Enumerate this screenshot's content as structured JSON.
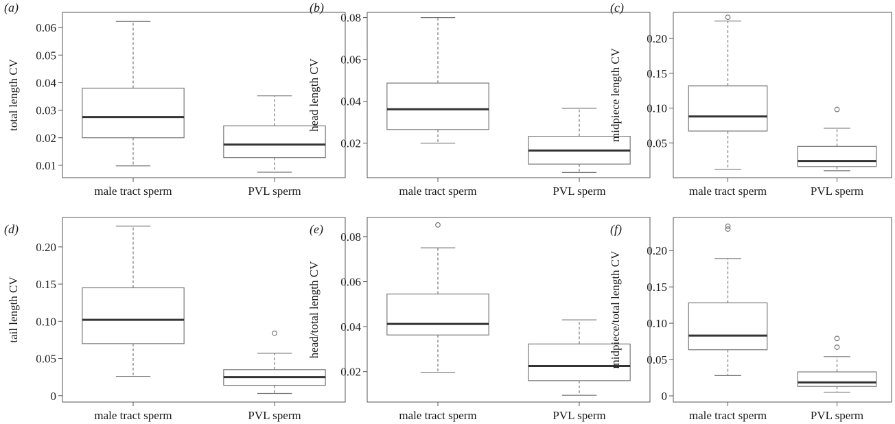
{
  "figure": {
    "categories": [
      "male tract sperm",
      "PVL sperm"
    ],
    "colors": {
      "frame": "#555555",
      "box": "#777777",
      "median": "#333333",
      "whisker": "#777777",
      "outlier": "#777777"
    }
  },
  "chart_data": [
    {
      "type": "box",
      "panel_label": "(a)",
      "ylabel": "total length CV",
      "categories": [
        "male tract sperm",
        "PVL sperm"
      ],
      "yticks": [
        0.01,
        0.02,
        0.03,
        0.04,
        0.05,
        0.06
      ],
      "ytick_labels": [
        "0.01",
        "0.02",
        "0.03",
        "0.04",
        "0.05",
        "0.06"
      ],
      "ylim": [
        0.0055,
        0.0655
      ],
      "boxes": [
        {
          "name": "male tract sperm",
          "min": 0.0098,
          "q1": 0.02,
          "median": 0.0275,
          "q3": 0.038,
          "max": 0.0622,
          "outliers": []
        },
        {
          "name": "PVL sperm",
          "min": 0.0075,
          "q1": 0.0128,
          "median": 0.0175,
          "q3": 0.0243,
          "max": 0.0352,
          "outliers": []
        }
      ]
    },
    {
      "type": "box",
      "panel_label": "(b)",
      "ylabel": "head length CV",
      "categories": [
        "male tract sperm",
        "PVL sperm"
      ],
      "yticks": [
        0.02,
        0.04,
        0.06,
        0.08
      ],
      "ytick_labels": [
        "0.02",
        "0.04",
        "0.06",
        "0.08"
      ],
      "ylim": [
        0.0035,
        0.0825
      ],
      "boxes": [
        {
          "name": "male tract sperm",
          "min": 0.02,
          "q1": 0.0265,
          "median": 0.0362,
          "q3": 0.0487,
          "max": 0.08,
          "outliers": []
        },
        {
          "name": "PVL sperm",
          "min": 0.006,
          "q1": 0.01,
          "median": 0.0165,
          "q3": 0.0233,
          "max": 0.0367,
          "outliers": []
        }
      ]
    },
    {
      "type": "box",
      "panel_label": "(c)",
      "ylabel": "midpiece length CV",
      "categories": [
        "male tract sperm",
        "PVL sperm"
      ],
      "yticks": [
        0.05,
        0.1,
        0.15,
        0.2
      ],
      "ytick_labels": [
        "0.05",
        "0.10",
        "0.15",
        "0.20"
      ],
      "ylim": [
        0.0,
        0.2375
      ],
      "boxes": [
        {
          "name": "male tract sperm",
          "min": 0.012,
          "q1": 0.067,
          "median": 0.088,
          "q3": 0.132,
          "max": 0.225,
          "outliers": [
            0.2305
          ]
        },
        {
          "name": "PVL sperm",
          "min": 0.01,
          "q1": 0.016,
          "median": 0.024,
          "q3": 0.045,
          "max": 0.071,
          "outliers": [
            0.098
          ]
        }
      ]
    },
    {
      "type": "box",
      "panel_label": "(d)",
      "ylabel": "tail length CV",
      "categories": [
        "male tract sperm",
        "PVL sperm"
      ],
      "yticks": [
        0,
        0.05,
        0.1,
        0.15,
        0.2
      ],
      "ytick_labels": [
        "0",
        "0.05",
        "0.10",
        "0.15",
        "0.20"
      ],
      "ylim": [
        -0.0085,
        0.2395
      ],
      "boxes": [
        {
          "name": "male tract sperm",
          "min": 0.026,
          "q1": 0.07,
          "median": 0.102,
          "q3": 0.145,
          "max": 0.228,
          "outliers": []
        },
        {
          "name": "PVL sperm",
          "min": 0.003,
          "q1": 0.014,
          "median": 0.025,
          "q3": 0.035,
          "max": 0.057,
          "outliers": [
            0.084
          ]
        }
      ]
    },
    {
      "type": "box",
      "panel_label": "(e)",
      "ylabel": "head/total length CV",
      "categories": [
        "male tract sperm",
        "PVL sperm"
      ],
      "yticks": [
        0.02,
        0.04,
        0.06,
        0.08
      ],
      "ytick_labels": [
        "0.02",
        "0.04",
        "0.06",
        "0.08"
      ],
      "ylim": [
        0.0065,
        0.0885
      ],
      "boxes": [
        {
          "name": "male tract sperm",
          "min": 0.0197,
          "q1": 0.0363,
          "median": 0.0412,
          "q3": 0.0545,
          "max": 0.075,
          "outliers": [
            0.0852
          ]
        },
        {
          "name": "PVL sperm",
          "min": 0.0095,
          "q1": 0.016,
          "median": 0.0225,
          "q3": 0.0323,
          "max": 0.043,
          "outliers": []
        }
      ]
    },
    {
      "type": "box",
      "panel_label": "(f)",
      "ylabel": "midpiece/total length CV",
      "categories": [
        "male tract sperm",
        "PVL sperm"
      ],
      "yticks": [
        0,
        0.05,
        0.1,
        0.15,
        0.2
      ],
      "ytick_labels": [
        "0",
        "0.05",
        "0.10",
        "0.15",
        "0.20"
      ],
      "ylim": [
        -0.0085,
        0.2455
      ],
      "boxes": [
        {
          "name": "male tract sperm",
          "min": 0.028,
          "q1": 0.0635,
          "median": 0.083,
          "q3": 0.128,
          "max": 0.189,
          "outliers": [
            0.2295,
            0.2335
          ]
        },
        {
          "name": "PVL sperm",
          "min": 0.005,
          "q1": 0.013,
          "median": 0.0185,
          "q3": 0.033,
          "max": 0.054,
          "outliers": [
            0.067,
            0.079
          ]
        }
      ]
    }
  ]
}
